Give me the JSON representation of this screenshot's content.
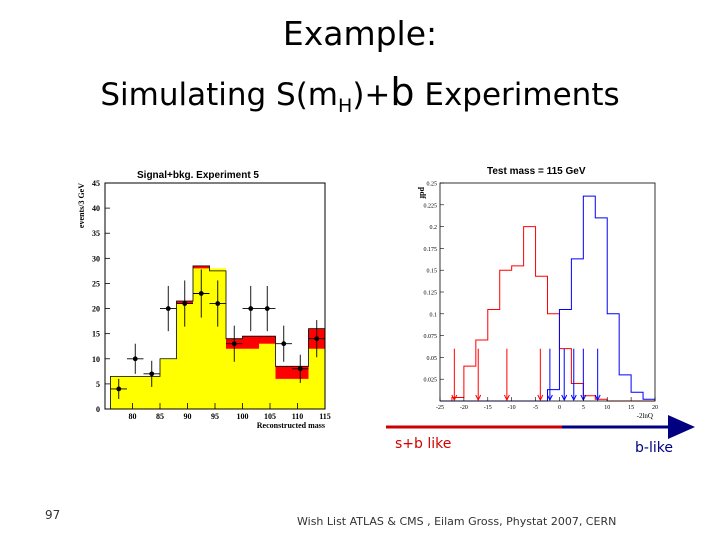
{
  "slide": {
    "title_line1": "Example:",
    "title_line2_pre": "Simulating S(m",
    "title_line2_sub": "H",
    "title_line2_mid": ")+",
    "title_line2_b": "b",
    "title_line2_post": " Experiments",
    "page_number": "97",
    "footer": "Wish List ATLAS & CMS , Eilam Gross, Phystat 2007, CERN",
    "axis_left_label": "s+b like",
    "axis_right_label": "b-like"
  },
  "chart_data": [
    {
      "type": "bar",
      "title": "Signal+bkg. Experiment 5",
      "xlabel": "Reconstructed mass",
      "ylabel": "events/3 GeV",
      "xlim": [
        75,
        115
      ],
      "ylim": [
        0,
        45
      ],
      "x_ticks": [
        80,
        85,
        90,
        95,
        100,
        105,
        110,
        115
      ],
      "y_ticks": [
        0,
        5,
        10,
        15,
        20,
        25,
        30,
        35,
        40,
        45
      ],
      "bin_edges": [
        76,
        79,
        82,
        85,
        88,
        91,
        94,
        97,
        100,
        103,
        106,
        109,
        112,
        115
      ],
      "series": [
        {
          "values": [
            6.5,
            6.5,
            6.5,
            10,
            21,
            28,
            28,
            12,
            12,
            13,
            6,
            6,
            12
          ],
          "color": "#ffff00"
        },
        {
          "values": [
            6.5,
            6.5,
            6.5,
            10,
            21.5,
            28.5,
            27.5,
            14,
            14.5,
            14.5,
            8.5,
            8.5,
            16
          ],
          "color": "#ff0000"
        }
      ],
      "data_points": {
        "x": [
          77.5,
          80.5,
          83.5,
          86.5,
          89.5,
          92.5,
          95.5,
          98.5,
          101.5,
          104.5,
          107.5,
          110.5,
          113.5
        ],
        "y": [
          4,
          10,
          7,
          20,
          21,
          23,
          21,
          13,
          20,
          20,
          13,
          8,
          14
        ],
        "err": [
          2,
          3,
          2.6,
          4.5,
          4.6,
          4.8,
          4.6,
          3.6,
          4.5,
          4.5,
          3.6,
          2.8,
          3.7
        ]
      }
    },
    {
      "type": "line",
      "title": "Test mass = 115 GeV",
      "xlabel": "-2lnQ",
      "ylabel": "pdf",
      "xlim": [
        -25,
        20
      ],
      "ylim": [
        0,
        0.25
      ],
      "x_ticks": [
        -25,
        -20,
        -15,
        -10,
        -5,
        0,
        5,
        10,
        15,
        20
      ],
      "y_ticks": [
        0,
        0.025,
        0.05,
        0.075,
        0.1,
        0.125,
        0.15,
        0.175,
        0.2,
        0.225,
        0.25
      ],
      "y_tick_labels": [
        "",
        "0.025",
        "0.05",
        "0.075",
        "0.1",
        "0.125",
        "0.15",
        "0.175",
        "0.2",
        "0.225",
        "0.25"
      ],
      "bin_edges": [
        -25,
        -22.5,
        -20,
        -17.5,
        -15,
        -12.5,
        -10,
        -7.5,
        -5,
        -2.5,
        0,
        2.5,
        5,
        7.5,
        10,
        12.5,
        15,
        17.5,
        20
      ],
      "series": [
        {
          "values": [
            0,
            0.004,
            0.04,
            0.07,
            0.105,
            0.15,
            0.155,
            0.2,
            0.143,
            0.1,
            0.06,
            0.02,
            0.006,
            0.002,
            0,
            0,
            0,
            0
          ],
          "color": "#ff0000"
        },
        {
          "values": [
            0,
            0,
            0,
            0,
            0,
            0,
            0,
            0,
            0,
            0.013,
            0.105,
            0.163,
            0.235,
            0.21,
            0.1,
            0.03,
            0.01,
            0.002
          ],
          "color": "#0000ff"
        }
      ],
      "experiment_markers": {
        "x": [
          -22,
          -17,
          -11,
          -4,
          -2,
          1,
          3,
          5,
          8
        ],
        "colors": [
          "#ff0000",
          "#ff0000",
          "#ff0000",
          "#ff0000",
          "#0000ff",
          "#0000ff",
          "#0000ff",
          "#0000ff",
          "#0000ff"
        ]
      }
    }
  ]
}
